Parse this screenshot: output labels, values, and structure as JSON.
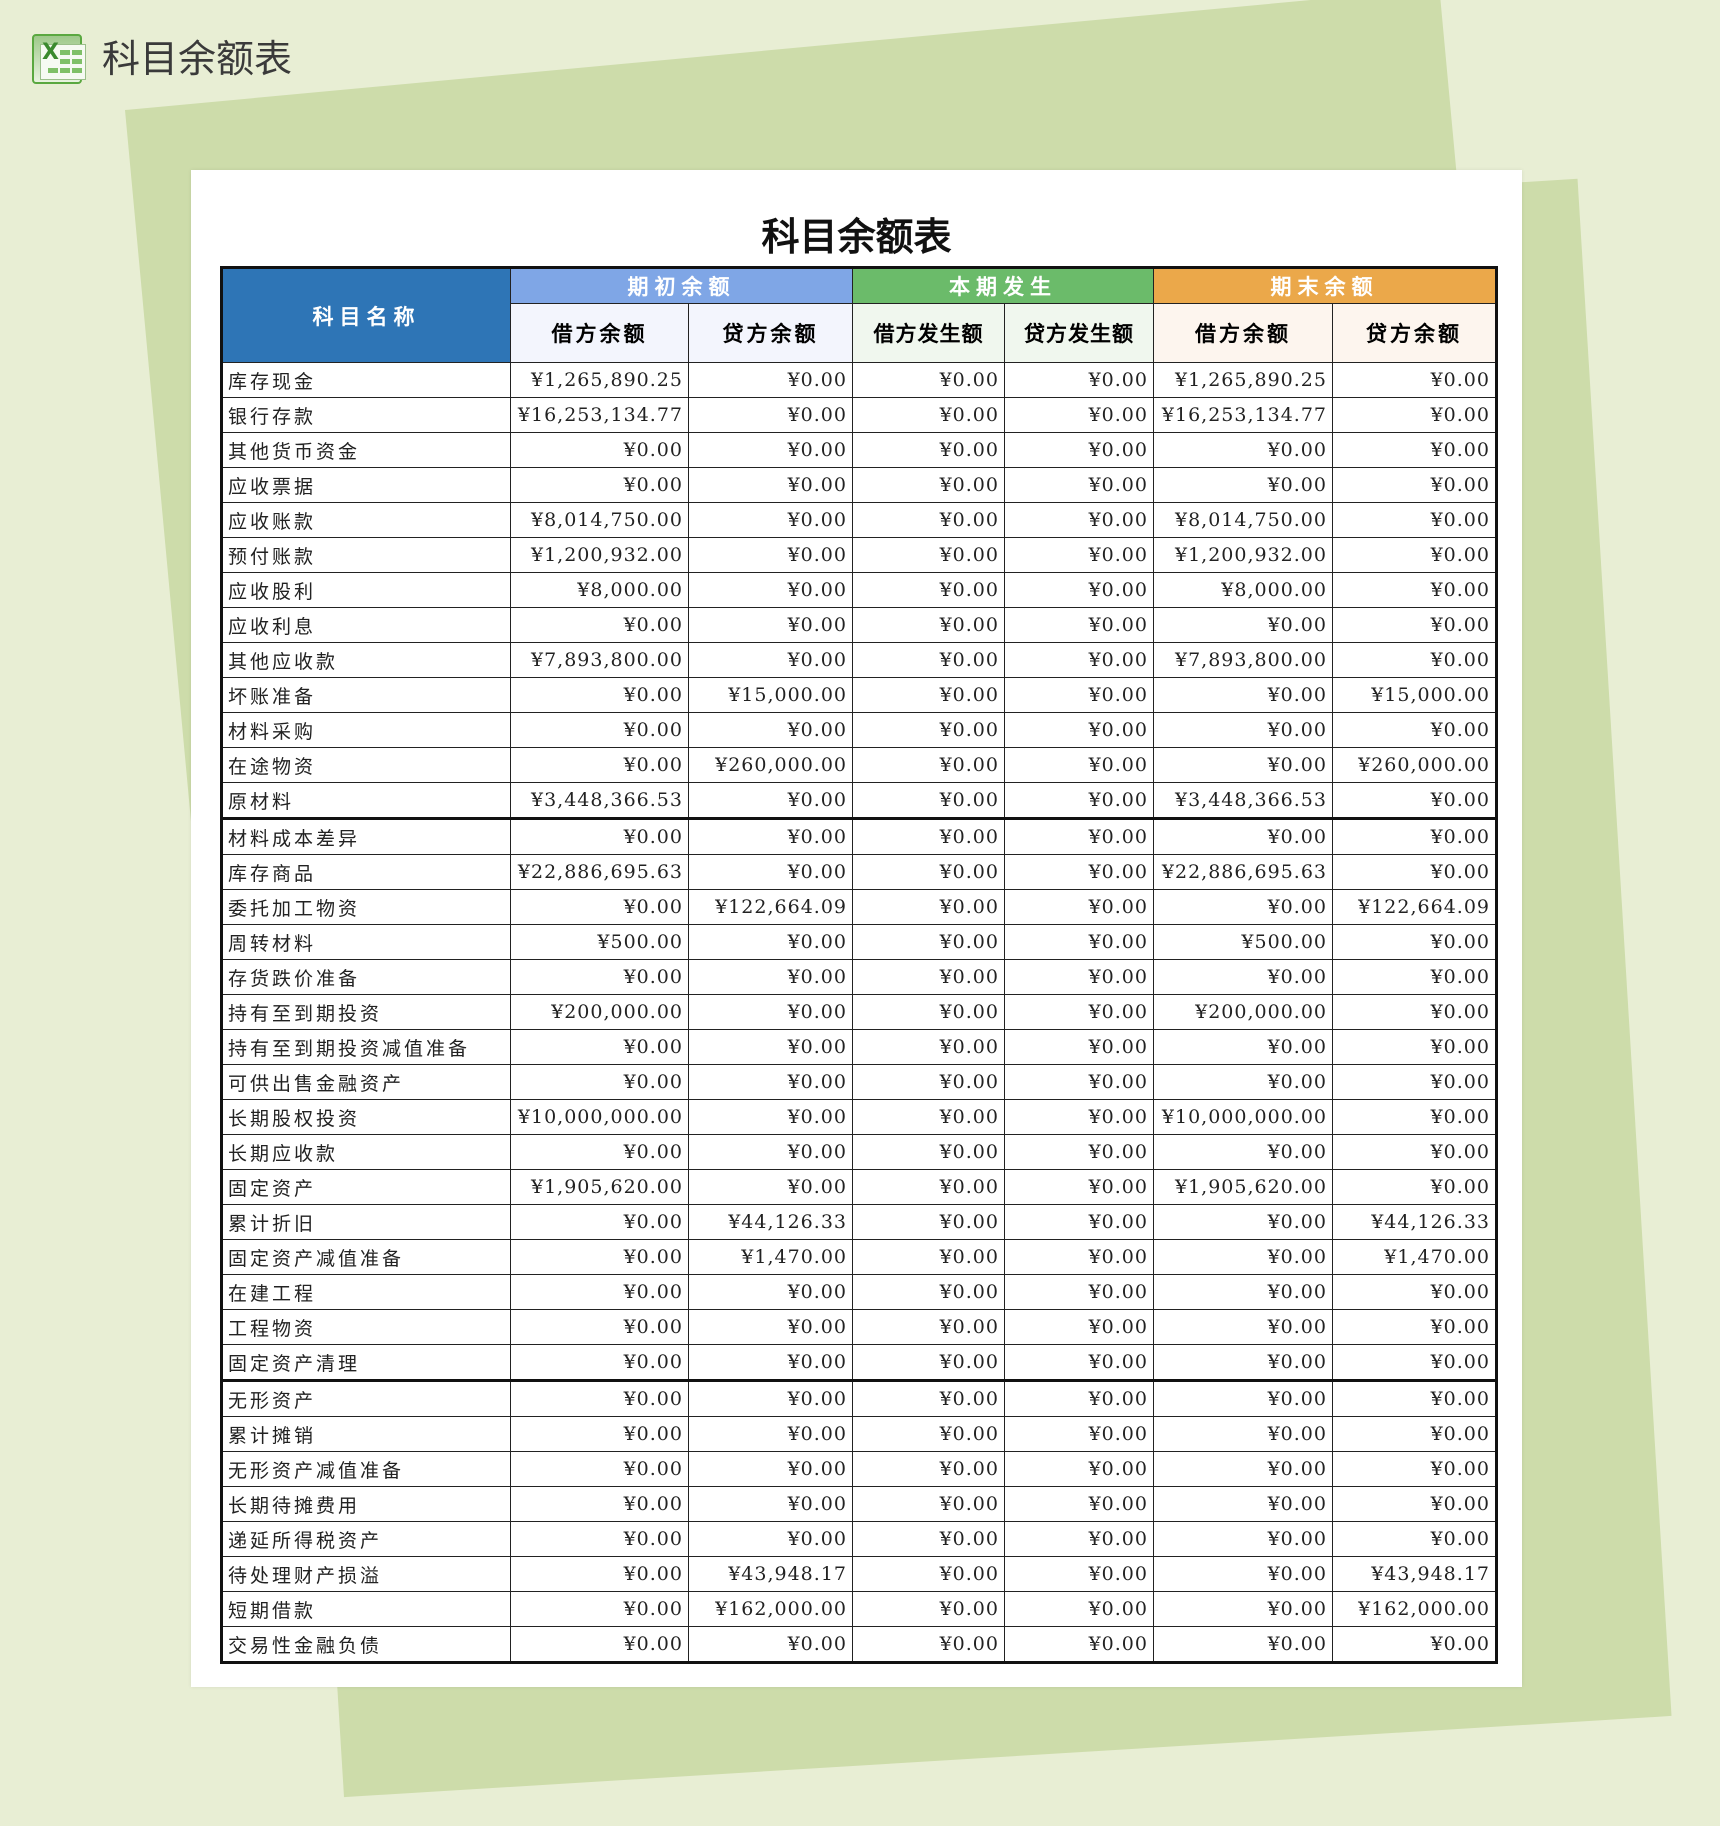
{
  "app": {
    "title": "科目余额表",
    "icon": "excel-icon"
  },
  "document": {
    "title": "科目余额表"
  },
  "colors": {
    "name_header": "#2e75b6",
    "opening": "#7fa6e6",
    "current": "#6bbb6a",
    "closing": "#eba84a",
    "background": "#e8eed4",
    "panel": "#cddcaa"
  },
  "table": {
    "name_header": "科目名称",
    "groups": [
      "期初余额",
      "本期发生",
      "期末余额"
    ],
    "subheaders": [
      "借方余额",
      "贷方余额",
      "借方发生额",
      "贷方发生额",
      "借方余额",
      "贷方余额"
    ],
    "rows": [
      [
        "库存现金",
        "¥1,265,890.25",
        "¥0.00",
        "¥0.00",
        "¥0.00",
        "¥1,265,890.25",
        "¥0.00"
      ],
      [
        "银行存款",
        "¥16,253,134.77",
        "¥0.00",
        "¥0.00",
        "¥0.00",
        "¥16,253,134.77",
        "¥0.00"
      ],
      [
        "其他货币资金",
        "¥0.00",
        "¥0.00",
        "¥0.00",
        "¥0.00",
        "¥0.00",
        "¥0.00"
      ],
      [
        "应收票据",
        "¥0.00",
        "¥0.00",
        "¥0.00",
        "¥0.00",
        "¥0.00",
        "¥0.00"
      ],
      [
        "应收账款",
        "¥8,014,750.00",
        "¥0.00",
        "¥0.00",
        "¥0.00",
        "¥8,014,750.00",
        "¥0.00"
      ],
      [
        "预付账款",
        "¥1,200,932.00",
        "¥0.00",
        "¥0.00",
        "¥0.00",
        "¥1,200,932.00",
        "¥0.00"
      ],
      [
        "应收股利",
        "¥8,000.00",
        "¥0.00",
        "¥0.00",
        "¥0.00",
        "¥8,000.00",
        "¥0.00"
      ],
      [
        "应收利息",
        "¥0.00",
        "¥0.00",
        "¥0.00",
        "¥0.00",
        "¥0.00",
        "¥0.00"
      ],
      [
        "其他应收款",
        "¥7,893,800.00",
        "¥0.00",
        "¥0.00",
        "¥0.00",
        "¥7,893,800.00",
        "¥0.00"
      ],
      [
        "坏账准备",
        "¥0.00",
        "¥15,000.00",
        "¥0.00",
        "¥0.00",
        "¥0.00",
        "¥15,000.00"
      ],
      [
        "材料采购",
        "¥0.00",
        "¥0.00",
        "¥0.00",
        "¥0.00",
        "¥0.00",
        "¥0.00"
      ],
      [
        "在途物资",
        "¥0.00",
        "¥260,000.00",
        "¥0.00",
        "¥0.00",
        "¥0.00",
        "¥260,000.00"
      ],
      [
        "原材料",
        "¥3,448,366.53",
        "¥0.00",
        "¥0.00",
        "¥0.00",
        "¥3,448,366.53",
        "¥0.00"
      ],
      [
        "材料成本差异",
        "¥0.00",
        "¥0.00",
        "¥0.00",
        "¥0.00",
        "¥0.00",
        "¥0.00"
      ],
      [
        "库存商品",
        "¥22,886,695.63",
        "¥0.00",
        "¥0.00",
        "¥0.00",
        "¥22,886,695.63",
        "¥0.00"
      ],
      [
        "委托加工物资",
        "¥0.00",
        "¥122,664.09",
        "¥0.00",
        "¥0.00",
        "¥0.00",
        "¥122,664.09"
      ],
      [
        "周转材料",
        "¥500.00",
        "¥0.00",
        "¥0.00",
        "¥0.00",
        "¥500.00",
        "¥0.00"
      ],
      [
        "存货跌价准备",
        "¥0.00",
        "¥0.00",
        "¥0.00",
        "¥0.00",
        "¥0.00",
        "¥0.00"
      ],
      [
        "持有至到期投资",
        "¥200,000.00",
        "¥0.00",
        "¥0.00",
        "¥0.00",
        "¥200,000.00",
        "¥0.00"
      ],
      [
        "持有至到期投资减值准备",
        "¥0.00",
        "¥0.00",
        "¥0.00",
        "¥0.00",
        "¥0.00",
        "¥0.00"
      ],
      [
        "可供出售金融资产",
        "¥0.00",
        "¥0.00",
        "¥0.00",
        "¥0.00",
        "¥0.00",
        "¥0.00"
      ],
      [
        "长期股权投资",
        "¥10,000,000.00",
        "¥0.00",
        "¥0.00",
        "¥0.00",
        "¥10,000,000.00",
        "¥0.00"
      ],
      [
        "长期应收款",
        "¥0.00",
        "¥0.00",
        "¥0.00",
        "¥0.00",
        "¥0.00",
        "¥0.00"
      ],
      [
        "固定资产",
        "¥1,905,620.00",
        "¥0.00",
        "¥0.00",
        "¥0.00",
        "¥1,905,620.00",
        "¥0.00"
      ],
      [
        "累计折旧",
        "¥0.00",
        "¥44,126.33",
        "¥0.00",
        "¥0.00",
        "¥0.00",
        "¥44,126.33"
      ],
      [
        "固定资产减值准备",
        "¥0.00",
        "¥1,470.00",
        "¥0.00",
        "¥0.00",
        "¥0.00",
        "¥1,470.00"
      ],
      [
        "在建工程",
        "¥0.00",
        "¥0.00",
        "¥0.00",
        "¥0.00",
        "¥0.00",
        "¥0.00"
      ],
      [
        "工程物资",
        "¥0.00",
        "¥0.00",
        "¥0.00",
        "¥0.00",
        "¥0.00",
        "¥0.00"
      ],
      [
        "固定资产清理",
        "¥0.00",
        "¥0.00",
        "¥0.00",
        "¥0.00",
        "¥0.00",
        "¥0.00"
      ],
      [
        "无形资产",
        "¥0.00",
        "¥0.00",
        "¥0.00",
        "¥0.00",
        "¥0.00",
        "¥0.00"
      ],
      [
        "累计摊销",
        "¥0.00",
        "¥0.00",
        "¥0.00",
        "¥0.00",
        "¥0.00",
        "¥0.00"
      ],
      [
        "无形资产减值准备",
        "¥0.00",
        "¥0.00",
        "¥0.00",
        "¥0.00",
        "¥0.00",
        "¥0.00"
      ],
      [
        "长期待摊费用",
        "¥0.00",
        "¥0.00",
        "¥0.00",
        "¥0.00",
        "¥0.00",
        "¥0.00"
      ],
      [
        "递延所得税资产",
        "¥0.00",
        "¥0.00",
        "¥0.00",
        "¥0.00",
        "¥0.00",
        "¥0.00"
      ],
      [
        "待处理财产损溢",
        "¥0.00",
        "¥43,948.17",
        "¥0.00",
        "¥0.00",
        "¥0.00",
        "¥43,948.17"
      ],
      [
        "短期借款",
        "¥0.00",
        "¥162,000.00",
        "¥0.00",
        "¥0.00",
        "¥0.00",
        "¥162,000.00"
      ],
      [
        "交易性金融负债",
        "¥0.00",
        "¥0.00",
        "¥0.00",
        "¥0.00",
        "¥0.00",
        "¥0.00"
      ]
    ]
  }
}
